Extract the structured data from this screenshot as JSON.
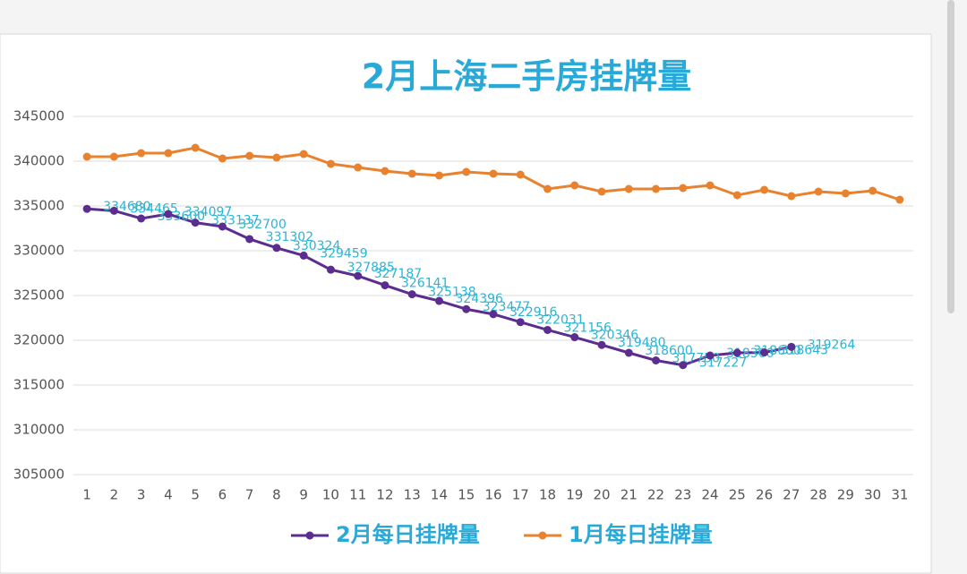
{
  "chart_data": {
    "type": "line",
    "title": "2月上海二手房挂牌量",
    "categories": [
      "1",
      "2",
      "3",
      "4",
      "5",
      "6",
      "7",
      "8",
      "9",
      "10",
      "11",
      "12",
      "13",
      "14",
      "15",
      "16",
      "17",
      "18",
      "19",
      "20",
      "21",
      "22",
      "23",
      "24",
      "25",
      "26",
      "27",
      "28",
      "29",
      "30",
      "31"
    ],
    "series": [
      {
        "name": "2月每日挂牌量",
        "color": "#5b2d8e",
        "data_labels": true,
        "values": [
          334680,
          334465,
          333600,
          334097,
          333137,
          332700,
          331302,
          330324,
          329459,
          327885,
          327187,
          326141,
          325138,
          324396,
          323477,
          322916,
          322031,
          321156,
          320346,
          319480,
          318600,
          317750,
          317227,
          318300,
          318600,
          318643,
          319264,
          null,
          null,
          null,
          null
        ]
      },
      {
        "name": "1月每日挂牌量",
        "color": "#e8822e",
        "values": [
          340500,
          340500,
          340900,
          340900,
          341500,
          340300,
          340600,
          340400,
          340800,
          339700,
          339300,
          338900,
          338600,
          338400,
          338800,
          338600,
          338500,
          336900,
          337300,
          336600,
          336900,
          336900,
          337000,
          337300,
          336200,
          336800,
          336100,
          336600,
          336400,
          336700,
          335700
        ]
      }
    ],
    "ylim": [
      305000,
      345000
    ],
    "yticks": [
      305000,
      310000,
      315000,
      320000,
      325000,
      330000,
      335000,
      340000,
      345000
    ],
    "grid": true,
    "legend": "bottom"
  }
}
